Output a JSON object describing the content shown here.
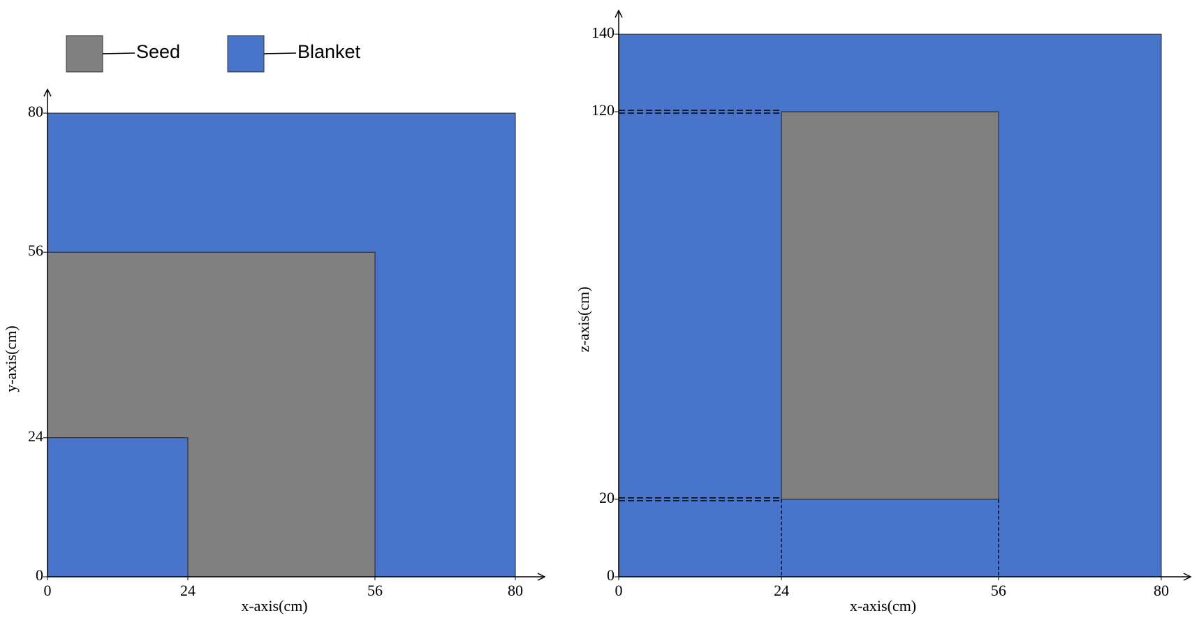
{
  "legend": [
    {
      "label": "Seed",
      "color": "#808080"
    },
    {
      "label": "Blanket",
      "color": "#4874ca"
    }
  ],
  "panels": [
    {
      "x_label": "x-axis(cm)",
      "y_label": "y-axis(cm)",
      "xlim": [
        0,
        80
      ],
      "ylim": [
        0,
        80
      ],
      "xticks": [
        0,
        24,
        56,
        80
      ],
      "yticks": [
        0,
        24,
        56,
        80
      ],
      "guides": false,
      "regions": [
        {
          "color": "#4874ca",
          "x": [
            0,
            80
          ],
          "y": [
            0,
            80
          ]
        },
        {
          "color": "#808080",
          "x": [
            0,
            56
          ],
          "y": [
            0,
            56
          ]
        },
        {
          "color": "#4874ca",
          "x": [
            0,
            24
          ],
          "y": [
            0,
            24
          ]
        }
      ]
    },
    {
      "x_label": "x-axis(cm)",
      "y_label": "z-axis(cm)",
      "xlim": [
        0,
        80
      ],
      "ylim": [
        0,
        140
      ],
      "xticks": [
        0,
        24,
        56,
        80
      ],
      "yticks": [
        0,
        20,
        120,
        140
      ],
      "guides": true,
      "regions": [
        {
          "color": "#4874ca",
          "x": [
            0,
            80
          ],
          "y": [
            0,
            140
          ]
        },
        {
          "color": "#808080",
          "x": [
            24,
            56
          ],
          "y": [
            20,
            120
          ]
        }
      ]
    }
  ]
}
